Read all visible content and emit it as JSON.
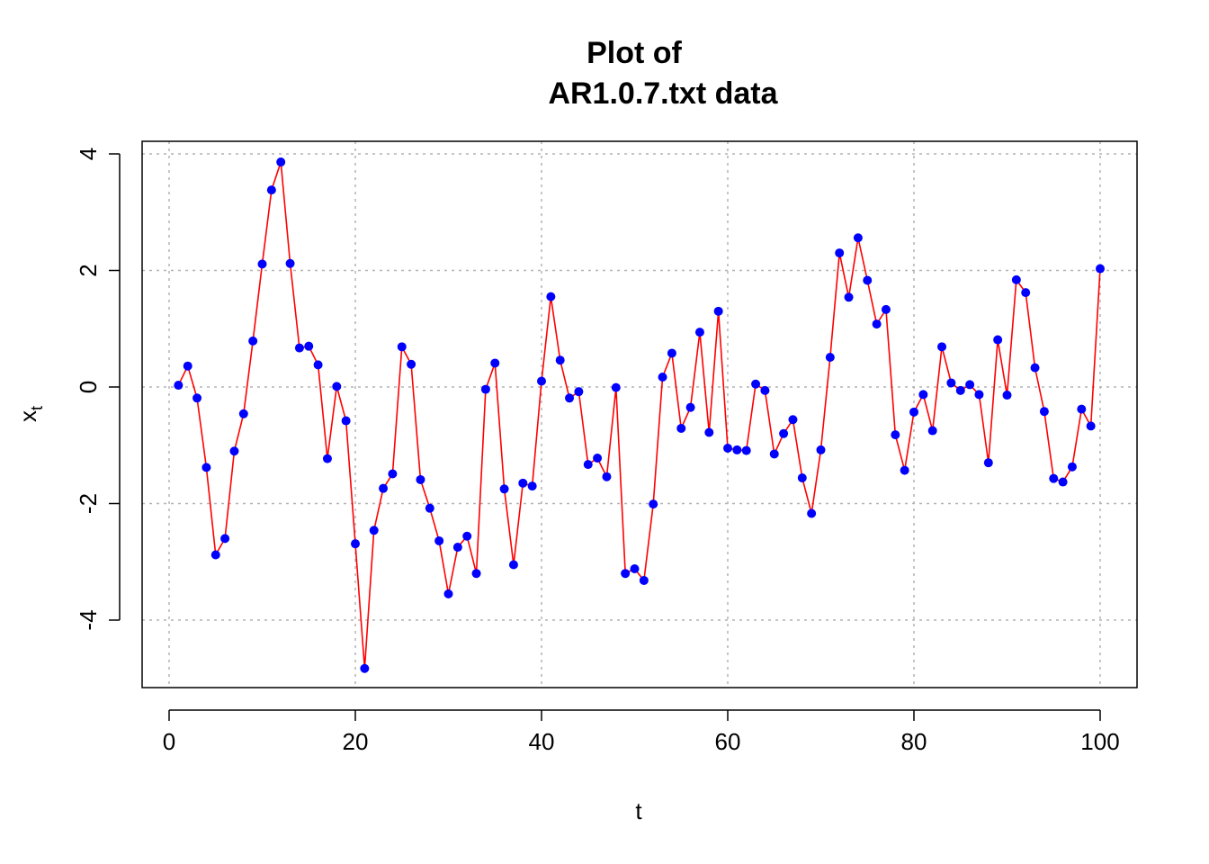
{
  "chart_data": {
    "type": "line",
    "title_line1": "Plot of",
    "title_line2": "AR1.0.7.txt data",
    "xlabel": "t",
    "ylabel_main": "x",
    "ylabel_sub": "t",
    "xlim": [
      0,
      100
    ],
    "ylim": [
      -4.8,
      3.9
    ],
    "xticks": [
      0,
      20,
      40,
      60,
      80,
      100
    ],
    "yticks": [
      -4,
      -2,
      0,
      2,
      4
    ],
    "grid": true,
    "line_color": "#ff0000",
    "point_color": "#0000ff",
    "x": [
      1,
      2,
      3,
      4,
      5,
      6,
      7,
      8,
      9,
      10,
      11,
      12,
      13,
      14,
      15,
      16,
      17,
      18,
      19,
      20,
      21,
      22,
      23,
      24,
      25,
      26,
      27,
      28,
      29,
      30,
      31,
      32,
      33,
      34,
      35,
      36,
      37,
      38,
      39,
      40,
      41,
      42,
      43,
      44,
      45,
      46,
      47,
      48,
      49,
      50,
      51,
      52,
      53,
      54,
      55,
      56,
      57,
      58,
      59,
      60,
      61,
      62,
      63,
      64,
      65,
      66,
      67,
      68,
      69,
      70,
      71,
      72,
      73,
      74,
      75,
      76,
      77,
      78,
      79,
      80,
      81,
      82,
      83,
      84,
      85,
      86,
      87,
      88,
      89,
      90,
      91,
      92,
      93,
      94,
      95,
      96,
      97,
      98,
      99,
      100
    ],
    "y": [
      0.03,
      0.36,
      -0.19,
      -1.38,
      -2.88,
      -2.6,
      -1.1,
      -0.46,
      0.79,
      2.11,
      3.38,
      3.86,
      2.12,
      0.67,
      0.7,
      0.38,
      -1.23,
      0.01,
      -0.58,
      -2.69,
      -4.83,
      -2.46,
      -1.74,
      -1.49,
      0.69,
      0.39,
      -1.59,
      -2.08,
      -2.64,
      -3.55,
      -2.75,
      -2.56,
      -3.2,
      -0.04,
      0.41,
      -1.75,
      -3.05,
      -1.65,
      -1.7,
      0.1,
      1.55,
      0.46,
      -0.19,
      -0.08,
      -1.33,
      -1.22,
      -1.54,
      -0.01,
      -3.2,
      -3.12,
      -3.32,
      -2.01,
      0.17,
      0.58,
      -0.71,
      -0.35,
      0.94,
      -0.78,
      1.3,
      -1.05,
      -1.08,
      -1.09,
      0.05,
      -0.06,
      -1.15,
      -0.8,
      -0.56,
      -1.56,
      -2.17,
      -1.08,
      0.51,
      2.3,
      1.54,
      2.56,
      1.83,
      1.08,
      1.33,
      -0.82,
      -1.43,
      -0.43,
      -0.13,
      -0.75,
      0.69,
      0.07,
      -0.06,
      0.04,
      -0.13,
      -1.3,
      0.81,
      -0.14,
      1.84,
      1.62,
      0.33,
      -0.42,
      -1.57,
      -1.63,
      -1.37,
      -0.38,
      -0.67,
      2.03
    ]
  }
}
